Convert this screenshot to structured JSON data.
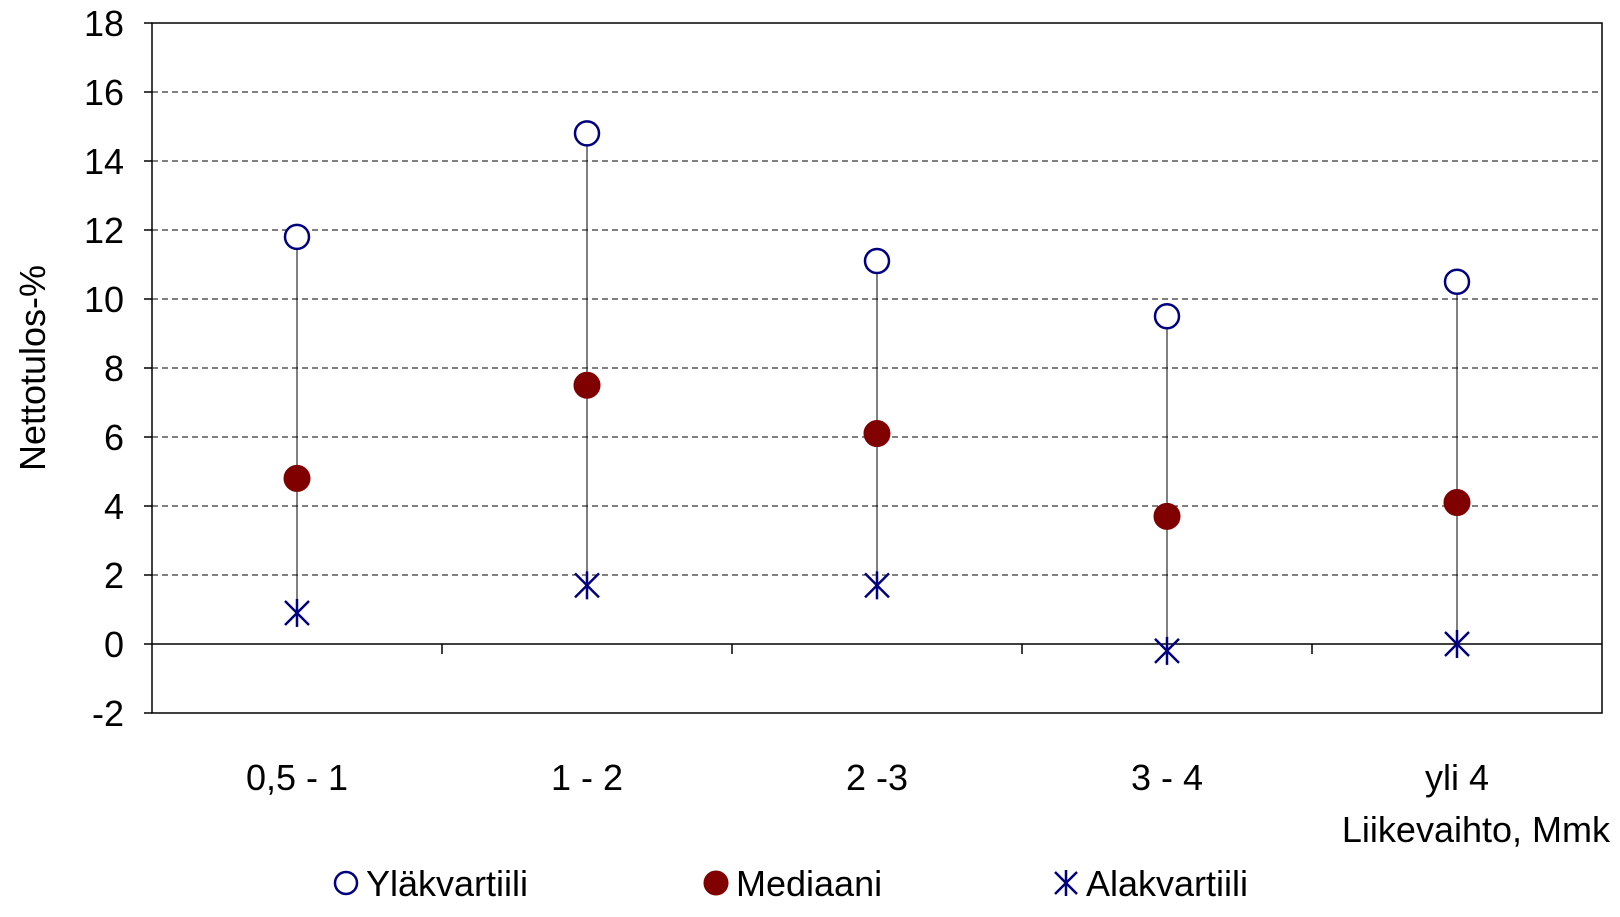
{
  "chart_data": {
    "type": "scatter",
    "title": "",
    "xlabel": "Liikevaihto, Mmk",
    "ylabel": "Nettotulos-%",
    "ylim": [
      -2,
      18
    ],
    "yticks": [
      "18",
      "16",
      "14",
      "12",
      "10",
      "8",
      "6",
      "4",
      "2",
      "0",
      "-2"
    ],
    "categories": [
      "0,5 - 1",
      "1 - 2",
      "2 -3",
      "3 - 4",
      "yli 4"
    ],
    "series": [
      {
        "name": "Yläkvartiili",
        "marker": "open-circle",
        "color": "#000080",
        "values": [
          11.8,
          14.8,
          11.1,
          9.5,
          10.5
        ]
      },
      {
        "name": "Mediaani",
        "marker": "filled-circle",
        "color": "#800000",
        "values": [
          4.8,
          7.5,
          6.1,
          3.7,
          4.1
        ]
      },
      {
        "name": "Alakvartiili",
        "marker": "asterisk",
        "color": "#000080",
        "values": [
          0.9,
          1.7,
          1.7,
          -0.2,
          0.0
        ]
      }
    ],
    "range_lines": true,
    "grid": "horizontal-dashed",
    "legend_position": "bottom"
  }
}
